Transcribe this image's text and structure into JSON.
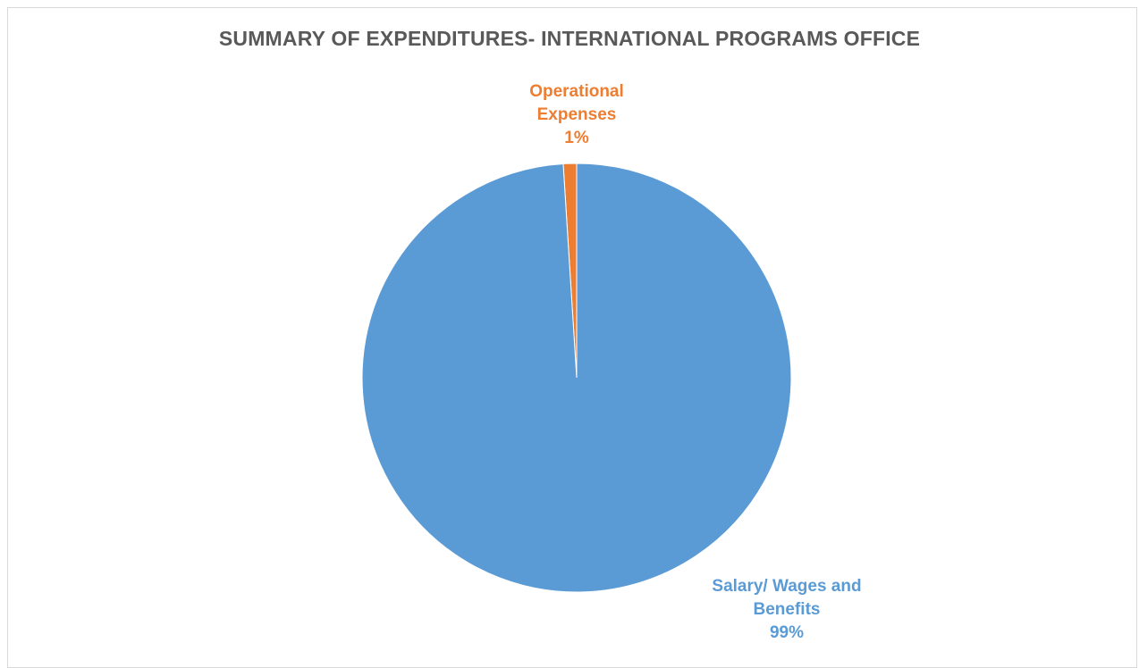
{
  "chart_data": {
    "type": "pie",
    "title": "SUMMARY OF EXPENDITURES- INTERNATIONAL PROGRAMS OFFICE",
    "categories": [
      "Operational Expenses",
      "Salary/ Wages and Benefits"
    ],
    "values": [
      1,
      99
    ],
    "data_labels": [
      {
        "line1": "Operational",
        "line2": "Expenses",
        "percent": "1%"
      },
      {
        "line1": "Salary/ Wages and",
        "line2": "Benefits",
        "percent": "99%"
      }
    ],
    "colors": [
      "#ed7d31",
      "#5b9bd5"
    ],
    "legend": "none"
  }
}
